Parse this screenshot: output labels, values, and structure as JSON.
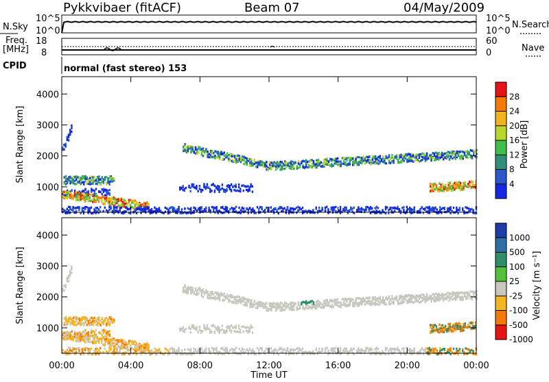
{
  "header": {
    "station": "Pykkvibaer (fitACF)",
    "beam": "Beam 07",
    "date": "04/May/2009"
  },
  "status_panels": {
    "nsky_label": "N.Sky",
    "nsky_ticks": [
      "10^5",
      "10^0"
    ],
    "nsearch_ticks": [
      "10^5",
      "10^0"
    ],
    "nsearch_label": "N.Search",
    "freq_label_line1": "Freq.",
    "freq_label_line2": "[MHz]",
    "freq_ticks": [
      "18",
      "8"
    ],
    "nave_ticks": [
      "60",
      "0"
    ],
    "nave_label": "Nave",
    "cpid_label": "CPID",
    "cpid_text": "normal (fast stereo) 153"
  },
  "chart_data": [
    {
      "type": "heatmap",
      "ylabel": "Slant Range [km]",
      "xlabel": "",
      "x_ticks": [
        "00:00",
        "04:00",
        "08:00",
        "12:00",
        "16:00",
        "20:00",
        "00:00"
      ],
      "x_range_hours": [
        0,
        24
      ],
      "y_ticks": [
        1000,
        2000,
        3000,
        4000
      ],
      "ylim": [
        180,
        4560
      ],
      "colorbar": {
        "label": "Power [dB]",
        "ticks": [
          "4",
          "8",
          "12",
          "16",
          "20",
          "24",
          "28"
        ],
        "colors": [
          "#1428e6",
          "#2a58c8",
          "#2f8f78",
          "#3fbf4a",
          "#b9d62a",
          "#f0b41a",
          "#f57a0a",
          "#e61414"
        ]
      }
    },
    {
      "type": "heatmap",
      "ylabel": "Slant Range [km]",
      "xlabel": "Time UT",
      "x_ticks": [
        "00:00",
        "04:00",
        "08:00",
        "12:00",
        "16:00",
        "20:00",
        "00:00"
      ],
      "x_range_hours": [
        0,
        24
      ],
      "y_ticks": [
        1000,
        2000,
        3000,
        4000
      ],
      "ylim": [
        180,
        4560
      ],
      "colorbar": {
        "label": "Velocity [m s⁻¹]",
        "ticks": [
          "1000",
          "500",
          "100",
          "25",
          "-25",
          "-100",
          "-500",
          "-1000"
        ],
        "colors": [
          "#1e3ca8",
          "#2f6fa8",
          "#2f8f6a",
          "#52c23a",
          "#c8c8c0",
          "#f5b420",
          "#f57a0a",
          "#e61414"
        ]
      }
    }
  ]
}
